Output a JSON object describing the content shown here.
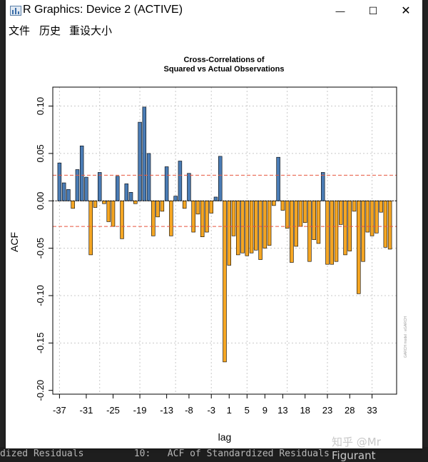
{
  "window": {
    "title": "R Graphics: Device 2 (ACTIVE)",
    "controls": {
      "minimize": "—",
      "maximize": "☐",
      "close": "✕"
    }
  },
  "menu": {
    "items": [
      "文件",
      "历史",
      "重设大小"
    ]
  },
  "background_text": "dized Residuals         10:   ACF of Standardized Residuals",
  "watermark": "知乎 @Mr Figurant",
  "chart_data": {
    "type": "bar",
    "title": "Cross-Correlations of\nSquared vs Actual Observations",
    "xlabel": "lag",
    "ylabel": "ACF",
    "xlim": [
      -38.5,
      38.5
    ],
    "ylim": [
      -0.204,
      0.12
    ],
    "x_ticks": [
      -37,
      -31,
      -25,
      -19,
      -13,
      -8,
      -3,
      1,
      5,
      9,
      13,
      18,
      23,
      28,
      33
    ],
    "y_ticks": [
      0.1,
      0.05,
      0.0,
      -0.05,
      -0.1,
      -0.15,
      -0.2
    ],
    "y_tick_labels": [
      "0.10",
      "0.05",
      "0.00",
      "-0.05",
      "-0.10",
      "-0.15",
      "-0.20"
    ],
    "x_grid": [
      -37,
      -28,
      -19,
      -11,
      -3,
      5,
      14,
      23,
      33
    ],
    "y_grid": [
      0.1,
      0.05,
      0.0,
      -0.05,
      -0.1,
      -0.15
    ],
    "confidence_bound": 0.027,
    "positive_color": "#4a7cb5",
    "negative_color": "#f5a623",
    "bound_color": "#e8553e",
    "side_note": "GARCH model : eGARCH",
    "lags": [
      -37,
      -36,
      -35,
      -34,
      -33,
      -32,
      -31,
      -30,
      -29,
      -28,
      -27,
      -26,
      -25,
      -24,
      -23,
      -22,
      -21,
      -20,
      -19,
      -18,
      -17,
      -16,
      -15,
      -14,
      -13,
      -12,
      -11,
      -10,
      -9,
      -8,
      -7,
      -6,
      -5,
      -4,
      -3,
      -2,
      -1,
      0,
      1,
      2,
      3,
      4,
      5,
      6,
      7,
      8,
      9,
      10,
      11,
      12,
      13,
      14,
      15,
      16,
      17,
      18,
      19,
      20,
      21,
      22,
      23,
      24,
      25,
      26,
      27,
      28,
      29,
      30,
      31,
      32,
      33,
      34,
      35,
      36,
      37
    ],
    "values": [
      0.04,
      0.019,
      0.012,
      -0.008,
      0.033,
      0.058,
      0.025,
      -0.057,
      -0.007,
      0.03,
      -0.003,
      -0.022,
      -0.027,
      0.026,
      -0.04,
      0.018,
      0.009,
      -0.003,
      0.083,
      0.099,
      0.05,
      -0.037,
      -0.017,
      -0.011,
      0.036,
      -0.037,
      0.005,
      0.042,
      -0.008,
      0.029,
      -0.033,
      -0.014,
      -0.038,
      -0.033,
      -0.013,
      0.004,
      0.047,
      -0.17,
      -0.068,
      -0.037,
      -0.057,
      -0.055,
      -0.058,
      -0.055,
      -0.052,
      -0.062,
      -0.05,
      -0.047,
      -0.005,
      0.046,
      -0.01,
      -0.029,
      -0.065,
      -0.048,
      -0.027,
      -0.023,
      -0.064,
      -0.041,
      -0.045,
      0.03,
      -0.067,
      -0.067,
      -0.064,
      -0.025,
      -0.057,
      -0.053,
      -0.011,
      -0.098,
      -0.064,
      -0.033,
      -0.037,
      -0.034,
      -0.012,
      -0.049,
      -0.051
    ]
  }
}
